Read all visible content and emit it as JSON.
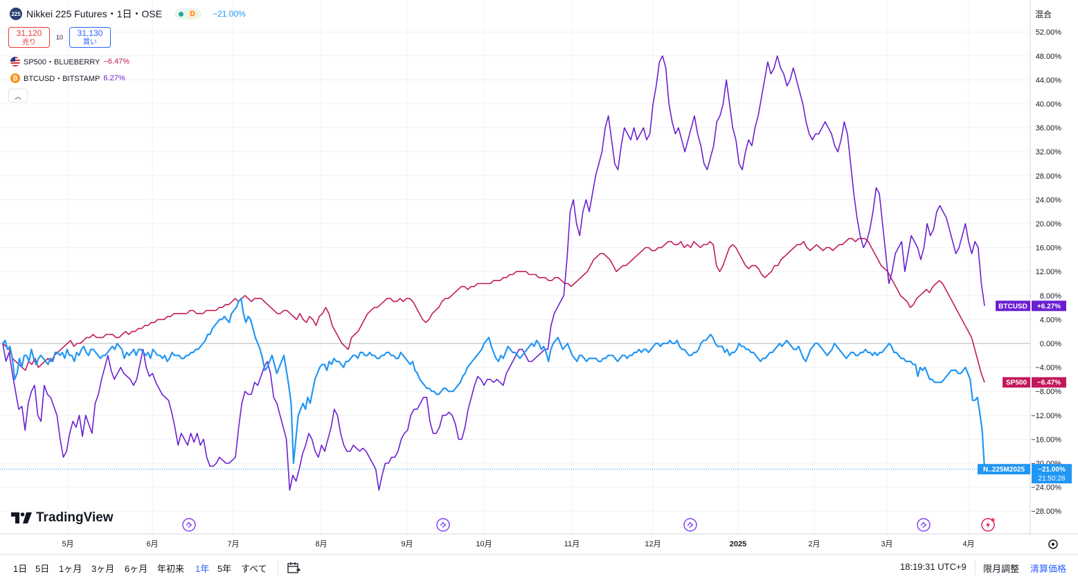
{
  "header": {
    "symbol_badge": "225",
    "title": "Nikkei 225 Futures・1日・OSE",
    "delay_badge": "D",
    "change": "−21.00%"
  },
  "order": {
    "sell_price": "31,120",
    "sell_label": "売り",
    "spread": "10",
    "buy_price": "31,130",
    "buy_label": "買い"
  },
  "legend": [
    {
      "icon": "us-flag-icon",
      "name": "SP500・BLUEBERRY",
      "value": "−6.47%",
      "color": "#c2185b"
    },
    {
      "icon": "bitcoin-icon",
      "name": "BTCUSD・BITSTAMP",
      "value": "6.27%",
      "color": "#6a1fd1"
    }
  ],
  "mode_label": "混合",
  "logo_text": "TradingView",
  "range_buttons": [
    "1日",
    "5日",
    "1ヶ月",
    "3ヶ月",
    "6ヶ月",
    "年初来",
    "1年",
    "5年",
    "すべて"
  ],
  "active_range": "1年",
  "clock": "18:19:31 UTC+9",
  "adjust_label": "限月調整",
  "settlement_label": "清算価格",
  "colors": {
    "nikkei": "#2196f3",
    "sp500": "#c2185b",
    "btc": "#6a1fd1",
    "grid": "#eef0f4",
    "axis_text": "#131722"
  },
  "chart_data": {
    "type": "line",
    "y_unit": "%",
    "ylim": [
      -30,
      54
    ],
    "y_ticks": [
      "52.00%",
      "48.00%",
      "44.00%",
      "40.00%",
      "36.00%",
      "32.00%",
      "28.00%",
      "24.00%",
      "20.00%",
      "16.00%",
      "12.00%",
      "8.00%",
      "4.00%",
      "0.00%",
      "−4.00%",
      "−8.00%",
      "−12.00%",
      "−16.00%",
      "−20.00%",
      "−24.00%",
      "−28.00%"
    ],
    "x_ticks": [
      "5月",
      "6月",
      "7月",
      "8月",
      "9月",
      "10月",
      "11月",
      "12月",
      "2025",
      "2月",
      "3月",
      "4月"
    ],
    "grid": true,
    "series": [
      {
        "name": "N..225M2025",
        "end_label": "N..225M2025",
        "end_value": "−21.00%",
        "end_time": "21:50:28",
        "color": "#2196f3",
        "values": [
          0,
          0.5,
          -1,
          -0.5,
          -2.5,
          -6,
          -5,
          -2.5,
          -4,
          -2,
          -2,
          -3,
          -1,
          -2.5,
          -3.5,
          -2.5,
          -2,
          -2.5,
          -3,
          -3.5,
          -2.5,
          -3,
          -1.5,
          -1.5,
          -2,
          -1.5,
          -2.5,
          -1,
          -2,
          -2,
          -3,
          -1.5,
          -2,
          -1,
          -0.5,
          -1.5,
          -2,
          -1,
          -1,
          -1.5,
          -2,
          -2.5,
          -2,
          -2,
          -1.5,
          -1,
          -0.5,
          -1,
          0,
          -0.5,
          -1,
          -2.5,
          -1.5,
          -2,
          -1.5,
          -1,
          -2,
          -1,
          -1,
          -1.5,
          -2,
          -1.5,
          -2.5,
          -1,
          -1.5,
          -2,
          -2,
          -2.5,
          -2,
          -3,
          -2.5,
          -1.5,
          -2,
          -2,
          -2,
          -2.5,
          -2.5,
          -2,
          -2,
          -1.5,
          -1.5,
          -1,
          -1,
          -0.5,
          0,
          0.5,
          1.5,
          1.5,
          2.5,
          3,
          3.5,
          4,
          4,
          4.5,
          4,
          3.5,
          5,
          5.5,
          6,
          7,
          7.5,
          5,
          3.5,
          4.5,
          4,
          2.5,
          1,
          0,
          -1,
          -2.5,
          -4.5,
          -4,
          -3,
          -2,
          -3.5,
          -5,
          -4,
          -3,
          -2,
          -4.5,
          -7,
          -10,
          -20,
          -16,
          -12,
          -11,
          -10,
          -11,
          -9,
          -10,
          -8,
          -6,
          -5,
          -4,
          -3.5,
          -3.5,
          -4.5,
          -3,
          -3.5,
          -2.5,
          -3,
          -3,
          -3.5,
          -4,
          -3,
          -3,
          -2.5,
          -2,
          -2,
          -2.5,
          -1.5,
          -1.5,
          -2,
          -2,
          -1.5,
          -2,
          -2,
          -2.5,
          -2.5,
          -2,
          -2,
          -1.5,
          -1.5,
          -2,
          -2,
          -2.5,
          -2.5,
          -1.5,
          -2,
          -2.5,
          -3,
          -3.5,
          -3,
          -4.5,
          -5,
          -6,
          -6.5,
          -7,
          -7.5,
          -7.5,
          -8,
          -8,
          -8.5,
          -8.5,
          -8,
          -7.5,
          -7.5,
          -8,
          -8,
          -8,
          -7.5,
          -7,
          -6.5,
          -5.5,
          -5,
          -4,
          -3.5,
          -3,
          -2.5,
          -2,
          -1.5,
          -1,
          0,
          0.5,
          1,
          -0.5,
          -1.5,
          -2.5,
          -3,
          -2,
          -2.5,
          -1.5,
          -0.5,
          -1,
          -1.5,
          -1.5,
          -2,
          -2.5,
          -2,
          -1.5,
          -1,
          -0.5,
          0,
          -0.5,
          0.5,
          0,
          -1,
          -0.5,
          -1.5,
          -3,
          -1,
          0,
          0.5,
          1,
          0,
          -1,
          -0.5,
          0,
          -1,
          -2,
          -2.5,
          -3,
          -2,
          -2,
          -2.5,
          -3,
          -2.5,
          -2.5,
          -2.5,
          -2.5,
          -3,
          -3,
          -2.5,
          -2.5,
          -2,
          -2,
          -2,
          -2.5,
          -3,
          -2.5,
          -2,
          -2,
          -2.5,
          -2,
          -2,
          -1.5,
          -1.5,
          -1,
          -1.5,
          -1,
          -1,
          -1.5,
          -1,
          -0.5,
          0,
          0,
          -0.5,
          0,
          0,
          0,
          0.5,
          0,
          0,
          0.5,
          -0.5,
          -1,
          -1,
          -1.5,
          -2,
          -2,
          -1.5,
          -1.5,
          -1,
          0,
          0.5,
          0.5,
          1,
          1.5,
          1,
          0,
          -0.5,
          -0.5,
          -0.5,
          -1.5,
          -1,
          -2,
          -1.5,
          -1.5,
          -1,
          0,
          -0.5,
          -0.5,
          -1,
          -1,
          -1.5,
          -1.5,
          -2,
          -2.5,
          -3,
          -2.5,
          -2.5,
          -2,
          -1.5,
          -1.5,
          -1,
          -0.5,
          0,
          -0.5,
          0,
          0.5,
          0,
          -0.5,
          -1,
          -1,
          -0.5,
          -1.5,
          -2.5,
          -3,
          -2,
          -1,
          -0.5,
          0,
          0,
          -0.5,
          -1,
          -1.5,
          -2,
          -1.5,
          -1,
          0,
          -0.5,
          -1,
          -1.5,
          -2,
          -2.5,
          -2,
          -1.5,
          -1.5,
          -2,
          -2,
          -1.5,
          -1.5,
          -1,
          -1.5,
          -1.5,
          -2,
          -1.5,
          -2,
          -1.5,
          -1.5,
          -1,
          -0.5,
          0,
          -0.5,
          -1.5,
          -1.5,
          -2,
          -2.5,
          -2.5,
          -3,
          -3,
          -3,
          -3.5,
          -3.5,
          -5.5,
          -4,
          -4.5,
          -4,
          -5,
          -6,
          -6,
          -6.5,
          -6.5,
          -6.5,
          -6.5,
          -6,
          -5.5,
          -5,
          -4.5,
          -4.5,
          -4.5,
          -5,
          -5,
          -4.5,
          -4,
          -5,
          -6,
          -9.5,
          -9.5,
          -9,
          -11.5,
          -14.5,
          -21
        ]
      },
      {
        "name": "SP500",
        "end_label": "SP500",
        "end_value": "−6.47%",
        "color": "#c2185b",
        "values": [
          0,
          -0.5,
          -1,
          -2.5,
          -3,
          -3.5,
          -4,
          -4.5,
          -3,
          -3.5,
          -2.5,
          -4,
          -3.5,
          -3,
          -2.5,
          -3,
          -2,
          -1.5,
          -1,
          -0.5,
          0,
          0.5,
          -0.5,
          0,
          0,
          0.5,
          1,
          1,
          1.5,
          1,
          1,
          1,
          1.5,
          1.5,
          1.5,
          1,
          1,
          1.5,
          2,
          1.5,
          2,
          2,
          2.5,
          2.5,
          3,
          3,
          3.5,
          3.5,
          4,
          4,
          4,
          4.5,
          4.5,
          5,
          5,
          5,
          5,
          5,
          5.5,
          5.5,
          5,
          5,
          5,
          5.5,
          5.5,
          5.5,
          5.5,
          6,
          6,
          6.5,
          6.5,
          7,
          7.5,
          7,
          7.5,
          8,
          7.5,
          7,
          7.5,
          7.5,
          7.5,
          7,
          6.5,
          6,
          5.5,
          5,
          5,
          5.5,
          5.5,
          5,
          4.5,
          4,
          5,
          4,
          3.5,
          4.5,
          4,
          3,
          4.5,
          5,
          6,
          5,
          3,
          2,
          1,
          0,
          -0.5,
          -1,
          1,
          1.5,
          2,
          3,
          4,
          5,
          5.5,
          6,
          6,
          6.5,
          7,
          7.5,
          7.5,
          7,
          7,
          7.5,
          7,
          7.5,
          7.5,
          7,
          6,
          5,
          4,
          3.5,
          4,
          5,
          5.5,
          6,
          7,
          7.5,
          7.5,
          8,
          8.5,
          9,
          9.5,
          9.5,
          9,
          9.5,
          9.5,
          10,
          10,
          10,
          10,
          10,
          10.5,
          10.5,
          10.5,
          11,
          11,
          11.5,
          11.5,
          12,
          12,
          12,
          12,
          11.5,
          11.5,
          11.5,
          11,
          11,
          11,
          10.5,
          10.5,
          11,
          11,
          10.5,
          10,
          10,
          9.5,
          10,
          10.5,
          11,
          11.5,
          12,
          13,
          14,
          14.5,
          15,
          15,
          14.5,
          14,
          13,
          12,
          12.5,
          13,
          13,
          13.5,
          14,
          14.5,
          15,
          15.5,
          16,
          16,
          15.5,
          15.5,
          16,
          16,
          16.5,
          17,
          17,
          16.5,
          16.5,
          17,
          16,
          16.5,
          16,
          17,
          16.5,
          16,
          16.5,
          16.5,
          17,
          16.5,
          13,
          12,
          13,
          14.5,
          16,
          16.5,
          16,
          15,
          14,
          13,
          12.5,
          13,
          13,
          12.5,
          11.5,
          11,
          11.5,
          12,
          13,
          13,
          14,
          14.5,
          15,
          15.5,
          16,
          16.5,
          16.5,
          17,
          16,
          15.5,
          16,
          16.5,
          16,
          15.5,
          16,
          16,
          15.5,
          16,
          16.5,
          16.5,
          17,
          17.5,
          17.5,
          17,
          17.5,
          17.5,
          17.5,
          17,
          16,
          15,
          14,
          13,
          12.5,
          12,
          11,
          10,
          9,
          8,
          7.5,
          7,
          6,
          6.5,
          7.5,
          8,
          8.5,
          9,
          8.5,
          9.5,
          10,
          10.5,
          10,
          9,
          8,
          7,
          6,
          5,
          4,
          3,
          2,
          1,
          -1,
          -3,
          -5,
          -6.5
        ]
      },
      {
        "name": "BTCUSD",
        "end_label": "BTCUSD",
        "end_value": "+6.27%",
        "color": "#6a1fd1",
        "values": [
          0,
          -3,
          -1.5,
          -5,
          -8,
          -11,
          -10.5,
          -14.5,
          -10,
          -8,
          -7,
          -12,
          -13,
          -7,
          -8.5,
          -9,
          -10.5,
          -12,
          -16,
          -19,
          -18,
          -15,
          -13,
          -14,
          -12,
          -15.5,
          -12,
          -13.5,
          -15,
          -10,
          -8.5,
          -6,
          -4,
          -2,
          -4.5,
          -6,
          -5,
          -4,
          -5,
          -5.5,
          -6,
          -7,
          -6,
          -3.5,
          -1,
          -4,
          -5.5,
          -5,
          -6.5,
          -7.5,
          -8.5,
          -9,
          -9.5,
          -11.5,
          -14,
          -17,
          -15,
          -16,
          -17,
          -15,
          -16.5,
          -15,
          -17,
          -16,
          -19,
          -20.5,
          -20.5,
          -20,
          -19,
          -19.5,
          -20,
          -20,
          -19.5,
          -19,
          -14,
          -10,
          -8,
          -8.5,
          -8.5,
          -6.5,
          -7,
          -5.5,
          -4,
          -3,
          -5,
          -9,
          -10,
          -12,
          -14,
          -16,
          -24.5,
          -22,
          -23,
          -21,
          -18.5,
          -17,
          -15,
          -16,
          -18,
          -19,
          -17,
          -18,
          -16,
          -14,
          -11,
          -12,
          -15,
          -17,
          -18,
          -18,
          -17,
          -17.5,
          -18,
          -17.5,
          -18,
          -19,
          -20,
          -21,
          -24.5,
          -22,
          -20,
          -20,
          -19,
          -19,
          -18,
          -16,
          -15,
          -14.5,
          -12,
          -11,
          -11,
          -10,
          -9,
          -9,
          -13,
          -15,
          -15,
          -14,
          -12,
          -12,
          -11.5,
          -12,
          -13.5,
          -16,
          -16,
          -14,
          -11,
          -9,
          -7,
          -5.5,
          -6,
          -7,
          -6,
          -6,
          -6.5,
          -6,
          -6.5,
          -7,
          -5,
          -4,
          -3,
          -2,
          -1,
          -1,
          -2,
          -3,
          -3,
          -2.5,
          -2,
          -1.5,
          -1,
          -1,
          3,
          5,
          6,
          7,
          8,
          14,
          22,
          24,
          20,
          18,
          22,
          24,
          22,
          25,
          28,
          30,
          32,
          36,
          38,
          34,
          30,
          29,
          33,
          36,
          35,
          34,
          36,
          34,
          35,
          36,
          34,
          35,
          40,
          43,
          47,
          48,
          46,
          40,
          37,
          35,
          36,
          34,
          32,
          34,
          36,
          38,
          35,
          33,
          30,
          29,
          31,
          33,
          37,
          38,
          40,
          44,
          40,
          36,
          34,
          30,
          29,
          32,
          34,
          33,
          36,
          38,
          41,
          44,
          47,
          45,
          46,
          48,
          46,
          45,
          43,
          44,
          46,
          44,
          42,
          40,
          37,
          35,
          34,
          35,
          35,
          36,
          37,
          36,
          35,
          33,
          32,
          34,
          37,
          35,
          30,
          25,
          21,
          18,
          16,
          17,
          19,
          22,
          26,
          25,
          20,
          15,
          10,
          12,
          15,
          16,
          17,
          12,
          15,
          18,
          17,
          16,
          14,
          16,
          20,
          18,
          19,
          22,
          23,
          22,
          21,
          19,
          17,
          15,
          16,
          18,
          20,
          17,
          15,
          17,
          16,
          10,
          6.27
        ]
      }
    ]
  }
}
